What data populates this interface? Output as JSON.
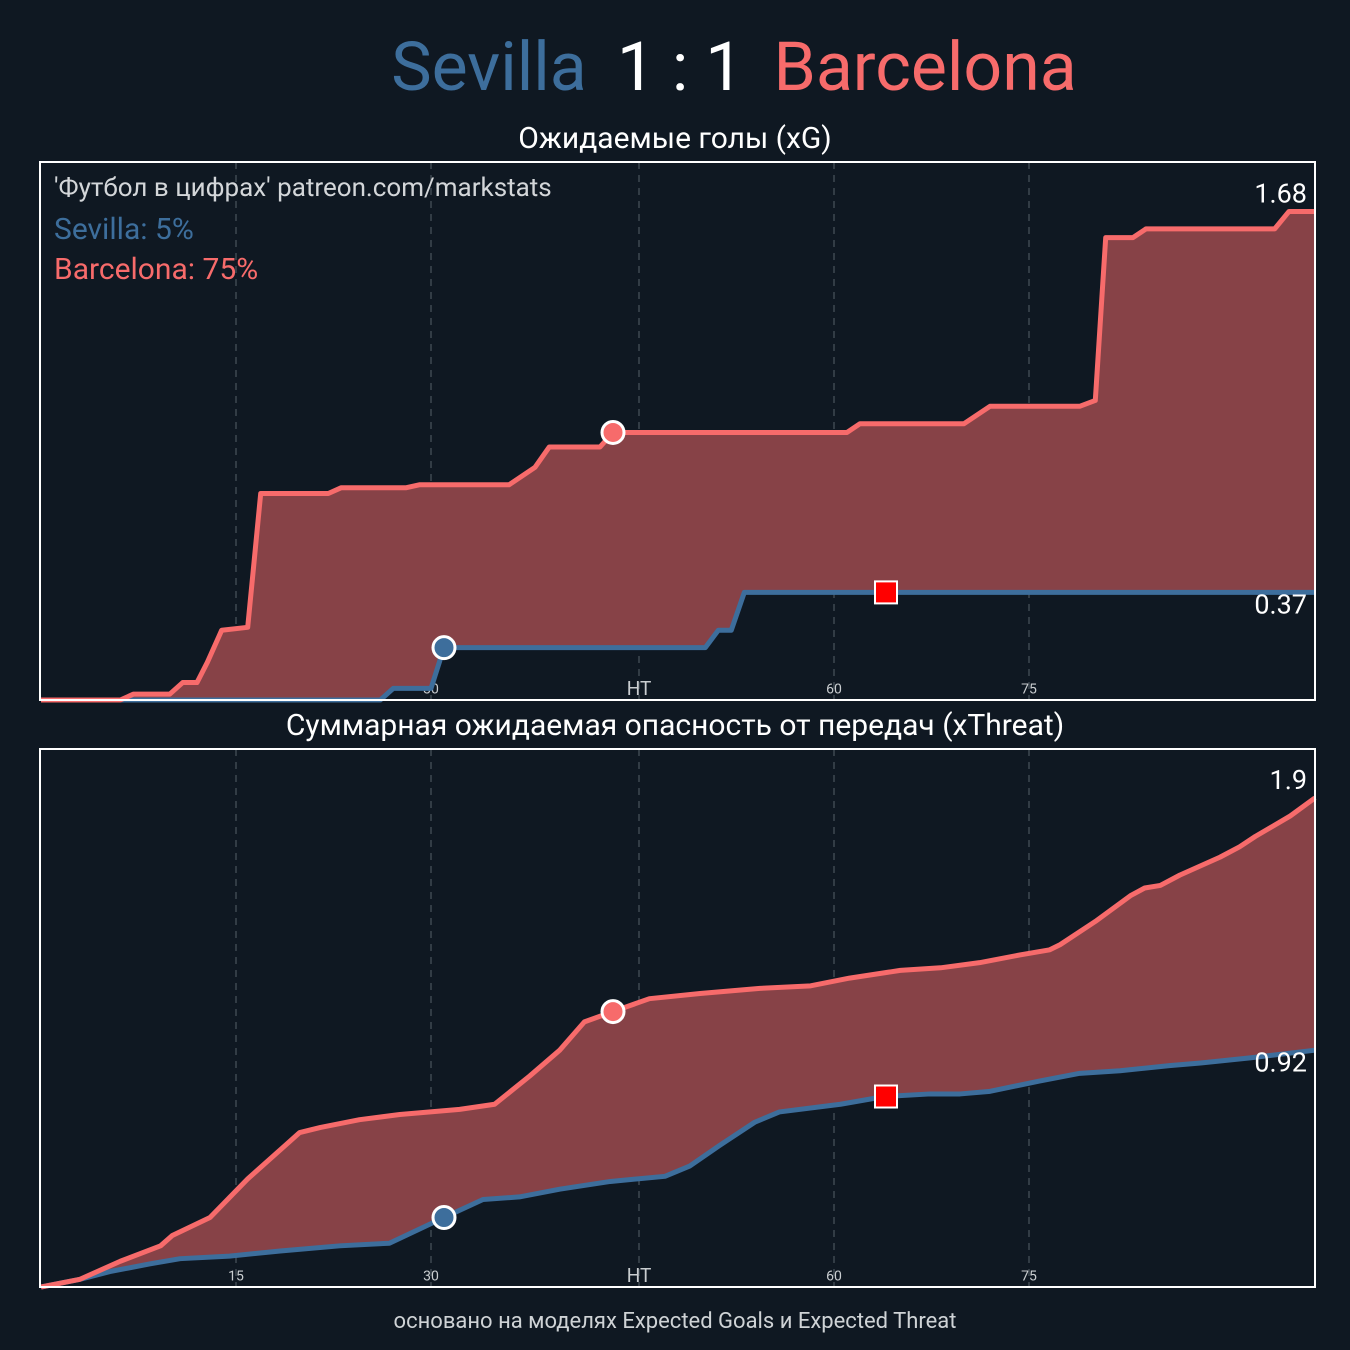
{
  "header": {
    "home": "Sevilla",
    "score": "1 : 1",
    "away": "Barcelona"
  },
  "annotations": {
    "source": "'Футбол в цифрах' patreon.com/markstats",
    "probabilities": [
      "Sevilla: 5%",
      "Barcelona: 75%"
    ]
  },
  "footer": "основано на моделях Expected Goals и Expected Threat",
  "fill_between_color": "#874247",
  "chart_data": [
    {
      "type": "line",
      "title": "Ожидаемые голы (xG)",
      "xlim": [
        0,
        98
      ],
      "ylim": [
        0,
        1.85
      ],
      "xticks": [
        15,
        30,
        {
          "value": 46,
          "label": "HT"
        },
        {
          "value": 61,
          "label": "60"
        },
        {
          "value": 76,
          "label": "75"
        }
      ],
      "grid": true,
      "series": [
        {
          "color": "#3d6e9c",
          "x": [
            0,
            26.1,
            27.1,
            30,
            31,
            51.1,
            52.1,
            53.1,
            54.1,
            98
          ],
          "values": [
            0,
            0,
            0.04,
            0.04,
            0.18,
            0.18,
            0.24,
            0.24,
            0.37,
            0.37
          ]
        },
        {
          "color": "#f76b6b",
          "x": [
            0,
            6.1,
            7.1,
            9.9,
            10.9,
            12,
            12.8,
            13.9,
            15.9,
            16.9,
            22.1,
            23.1,
            28.1,
            29.1,
            36,
            37,
            38,
            39.1,
            43,
            44,
            62,
            63,
            71,
            73,
            79.9,
            81.1,
            81.9,
            84,
            85,
            94.9,
            96,
            98
          ],
          "values": [
            0,
            0,
            0.02,
            0.02,
            0.06,
            0.06,
            0.13,
            0.24,
            0.25,
            0.71,
            0.71,
            0.73,
            0.73,
            0.74,
            0.74,
            0.77,
            0.8,
            0.87,
            0.87,
            0.92,
            0.92,
            0.95,
            0.95,
            1.01,
            1.01,
            1.03,
            1.59,
            1.59,
            1.62,
            1.62,
            1.68,
            1.68
          ]
        }
      ],
      "events": [
        {
          "kind": "goal",
          "series": 0,
          "x": 31,
          "y": 0.18
        },
        {
          "kind": "goal",
          "series": 1,
          "x": 44,
          "y": 0.92
        },
        {
          "kind": "red_card",
          "series": 0,
          "x": 65,
          "y": 0.37
        }
      ]
    },
    {
      "type": "line",
      "title": "Суммарная ожидаемая опасность от передач (xThreat)",
      "xlim": [
        0,
        98
      ],
      "ylim": [
        0,
        2.09
      ],
      "xticks": [
        15,
        30,
        {
          "value": 46,
          "label": "HT"
        },
        {
          "value": 61,
          "label": "60"
        },
        {
          "value": 76,
          "label": "75"
        }
      ],
      "grid": true,
      "series": [
        {
          "color": "#3d6e9c",
          "x": [
            0,
            3,
            5.3,
            8.4,
            10.7,
            14.5,
            18.4,
            23,
            26.8,
            31,
            34,
            36.8,
            39.9,
            43.8,
            48,
            49.9,
            52.2,
            54.9,
            56.8,
            61.5,
            64.9,
            68.4,
            70.7,
            73,
            76.8,
            79.9,
            83,
            86.8,
            89.2,
            93,
            98
          ],
          "values": [
            0,
            0.03,
            0.06,
            0.09,
            0.11,
            0.12,
            0.14,
            0.16,
            0.17,
            0.27,
            0.34,
            0.35,
            0.38,
            0.41,
            0.43,
            0.47,
            0.55,
            0.64,
            0.68,
            0.71,
            0.74,
            0.75,
            0.75,
            0.76,
            0.8,
            0.83,
            0.84,
            0.86,
            0.87,
            0.89,
            0.92
          ]
        },
        {
          "color": "#f76b6b",
          "x": [
            0,
            3,
            6.1,
            9.2,
            10.1,
            13,
            15.9,
            19.9,
            21.5,
            24.5,
            27.6,
            32.2,
            34.9,
            37.6,
            39.9,
            41.8,
            44,
            46.8,
            50.7,
            55.3,
            59.2,
            62.2,
            66.1,
            69.2,
            72.2,
            75.3,
            77.6,
            78.4,
            81.1,
            83.8,
            84.9,
            86.1,
            87.6,
            90.7,
            92.2,
            93.4,
            96.1,
            98
          ],
          "values": [
            0,
            0.03,
            0.1,
            0.16,
            0.2,
            0.27,
            0.42,
            0.6,
            0.62,
            0.65,
            0.67,
            0.69,
            0.71,
            0.82,
            0.92,
            1.03,
            1.07,
            1.12,
            1.14,
            1.16,
            1.17,
            1.2,
            1.23,
            1.24,
            1.26,
            1.29,
            1.31,
            1.33,
            1.42,
            1.52,
            1.55,
            1.56,
            1.6,
            1.67,
            1.71,
            1.75,
            1.83,
            1.9
          ]
        }
      ],
      "events": [
        {
          "kind": "goal",
          "series": 0,
          "x": 31,
          "y": 0.27
        },
        {
          "kind": "goal",
          "series": 1,
          "x": 44,
          "y": 1.07
        },
        {
          "kind": "red_card",
          "series": 0,
          "x": 65,
          "y": 0.74
        }
      ]
    }
  ]
}
